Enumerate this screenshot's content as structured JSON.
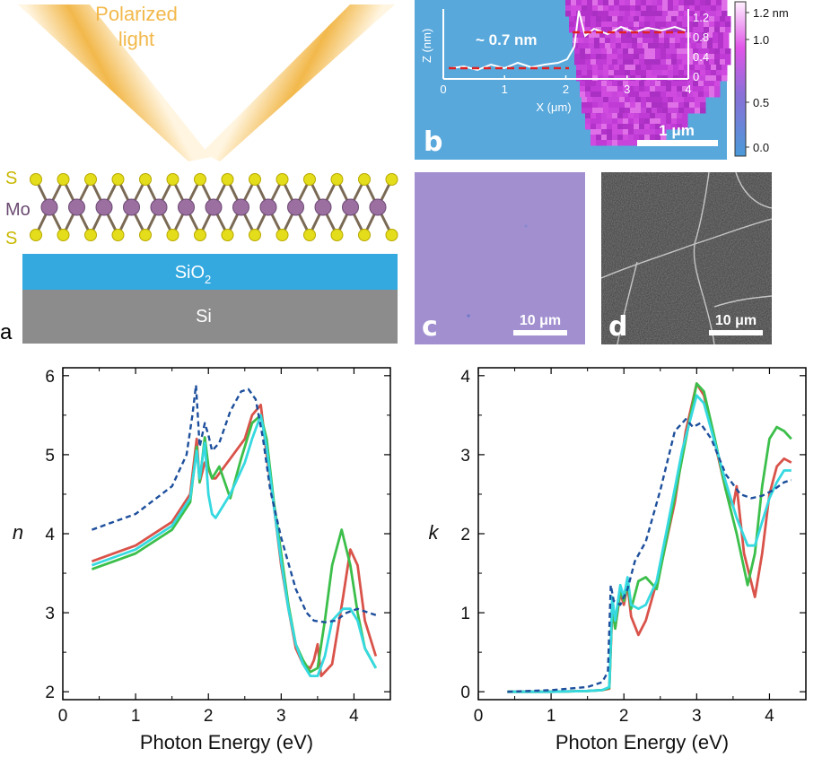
{
  "panel_a": {
    "light_label_1": "Polarized",
    "light_label_2": "light",
    "atom_S_top": "S",
    "atom_Mo": "Mo",
    "atom_S_bottom": "S",
    "layer_sio2": "SiO",
    "layer_sio2_sub": "2",
    "layer_si": "Si",
    "letter": "a",
    "colors": {
      "light": "#f2b84b",
      "sulfur": "#e3dd1c",
      "molybdenum": "#9b6fa0",
      "sio2": "#33a9e0",
      "si": "#8c8c8c"
    }
  },
  "panel_b": {
    "letter": "b",
    "step_label": "~ 0.7 nm",
    "scale_bar": "1 μm",
    "inset_ylabel": "Z (nm)",
    "inset_xlabel": "X (μm)",
    "inset_xticks": [
      "0",
      "1",
      "2",
      "3",
      "4"
    ],
    "inset_yticks": [
      "0",
      "0.4",
      "0.8",
      "1.2"
    ],
    "colorbar_ticks": [
      "1.2 nm",
      "1.0",
      "0.5",
      "0.0"
    ],
    "colors": {
      "substrate": "#58a8dc",
      "flake": "#c03ad6"
    }
  },
  "panel_c": {
    "letter": "c",
    "scale_bar": "10 μm",
    "color": "#a18fd0"
  },
  "panel_d": {
    "letter": "d",
    "scale_bar": "10 μm",
    "color": "#4a4a4a"
  },
  "chart_data": [
    {
      "type": "line",
      "xlabel": "Photon Energy (eV)",
      "ylabel": "n",
      "xlim": [
        0,
        4.5
      ],
      "ylim": [
        1.9,
        6.1
      ],
      "xticks": [
        "0",
        "1",
        "2",
        "3",
        "4"
      ],
      "yticks": [
        "2",
        "3",
        "4",
        "5",
        "6"
      ],
      "series": [
        {
          "color": "#d9534a",
          "style": "solid",
          "x": [
            0.4,
            1.0,
            1.5,
            1.75,
            1.84,
            1.88,
            1.95,
            2.0,
            2.05,
            2.1,
            2.3,
            2.5,
            2.6,
            2.72,
            2.8,
            2.9,
            3.0,
            3.1,
            3.2,
            3.3,
            3.4,
            3.45,
            3.5,
            3.55,
            3.7,
            3.85,
            3.95,
            4.05,
            4.15,
            4.3
          ],
          "y": [
            3.65,
            3.85,
            4.15,
            4.5,
            5.2,
            4.65,
            4.9,
            4.82,
            4.7,
            4.7,
            4.95,
            5.2,
            5.5,
            5.63,
            5.0,
            4.35,
            3.6,
            3.05,
            2.55,
            2.35,
            2.3,
            2.4,
            2.6,
            2.2,
            2.35,
            3.2,
            3.8,
            3.6,
            2.9,
            2.45
          ]
        },
        {
          "color": "#3cbf4a",
          "style": "solid",
          "x": [
            0.4,
            1.0,
            1.5,
            1.75,
            1.84,
            1.88,
            1.95,
            2.0,
            2.05,
            2.15,
            2.3,
            2.45,
            2.6,
            2.72,
            2.8,
            2.9,
            3.0,
            3.1,
            3.2,
            3.3,
            3.4,
            3.5,
            3.6,
            3.7,
            3.83,
            3.95,
            4.05,
            4.15,
            4.3
          ],
          "y": [
            3.55,
            3.75,
            4.05,
            4.4,
            5.1,
            4.65,
            5.22,
            4.85,
            4.7,
            4.85,
            4.45,
            4.95,
            5.4,
            5.5,
            5.2,
            4.4,
            3.75,
            3.1,
            2.6,
            2.4,
            2.25,
            2.3,
            2.9,
            3.6,
            4.05,
            3.6,
            3.0,
            2.55,
            2.3
          ]
        },
        {
          "color": "#36d9e0",
          "style": "solid",
          "x": [
            0.4,
            1.0,
            1.5,
            1.75,
            1.84,
            1.88,
            1.95,
            2.0,
            2.05,
            2.1,
            2.3,
            2.5,
            2.6,
            2.72,
            2.8,
            2.9,
            3.0,
            3.1,
            3.2,
            3.3,
            3.4,
            3.5,
            3.6,
            3.7,
            3.85,
            3.95,
            4.05,
            4.15,
            4.3
          ],
          "y": [
            3.6,
            3.8,
            4.1,
            4.45,
            5.05,
            4.7,
            5.15,
            4.5,
            4.25,
            4.2,
            4.5,
            4.9,
            5.2,
            5.5,
            5.1,
            4.35,
            3.65,
            3.05,
            2.6,
            2.35,
            2.2,
            2.2,
            2.45,
            2.9,
            3.05,
            3.05,
            2.9,
            2.55,
            2.3
          ]
        },
        {
          "color": "#1d4f9c",
          "style": "dashed",
          "x": [
            0.4,
            1.0,
            1.5,
            1.7,
            1.78,
            1.83,
            1.88,
            1.95,
            2.0,
            2.05,
            2.15,
            2.3,
            2.45,
            2.55,
            2.65,
            2.75,
            2.85,
            3.0,
            3.2,
            3.35,
            3.45,
            3.6,
            3.75,
            3.9,
            4.05,
            4.2,
            4.3
          ],
          "y": [
            4.05,
            4.25,
            4.6,
            5.0,
            5.5,
            5.88,
            5.1,
            5.4,
            5.25,
            5.05,
            5.15,
            5.55,
            5.8,
            5.83,
            5.7,
            5.2,
            4.55,
            3.95,
            3.3,
            3.0,
            2.9,
            2.88,
            2.9,
            3.0,
            3.05,
            3.0,
            2.97
          ]
        }
      ]
    },
    {
      "type": "line",
      "xlabel": "Photon Energy (eV)",
      "ylabel": "k",
      "xlim": [
        0,
        4.5
      ],
      "ylim": [
        -0.1,
        4.1
      ],
      "xticks": [
        "0",
        "1",
        "2",
        "3",
        "4"
      ],
      "yticks": [
        "0",
        "1",
        "2",
        "3",
        "4"
      ],
      "series": [
        {
          "color": "#d9534a",
          "style": "solid",
          "x": [
            0.4,
            1.0,
            1.5,
            1.7,
            1.8,
            1.84,
            1.88,
            1.95,
            2.0,
            2.05,
            2.1,
            2.2,
            2.3,
            2.5,
            2.7,
            2.85,
            3.0,
            3.1,
            3.25,
            3.4,
            3.5,
            3.55,
            3.65,
            3.8,
            3.9,
            4.0,
            4.1,
            4.2,
            4.3
          ],
          "y": [
            0.0,
            0.0,
            0.01,
            0.02,
            0.04,
            1.05,
            0.8,
            1.25,
            1.1,
            1.35,
            0.95,
            0.72,
            0.9,
            1.55,
            2.4,
            3.3,
            3.9,
            3.75,
            3.15,
            2.55,
            2.35,
            2.6,
            1.75,
            1.2,
            1.75,
            2.5,
            2.85,
            2.95,
            2.9
          ]
        },
        {
          "color": "#3cbf4a",
          "style": "solid",
          "x": [
            0.4,
            1.0,
            1.5,
            1.7,
            1.8,
            1.84,
            1.88,
            1.95,
            2.0,
            2.05,
            2.1,
            2.2,
            2.3,
            2.45,
            2.6,
            2.8,
            3.0,
            3.1,
            3.25,
            3.4,
            3.55,
            3.7,
            3.8,
            3.9,
            4.0,
            4.1,
            4.2,
            4.3
          ],
          "y": [
            0.0,
            0.0,
            0.01,
            0.02,
            0.05,
            1.1,
            0.8,
            1.3,
            1.15,
            1.4,
            1.05,
            1.4,
            1.45,
            1.3,
            2.0,
            2.95,
            3.9,
            3.8,
            3.2,
            2.55,
            2.0,
            1.35,
            1.75,
            2.6,
            3.2,
            3.35,
            3.3,
            3.2
          ]
        },
        {
          "color": "#36d9e0",
          "style": "solid",
          "x": [
            0.4,
            1.0,
            1.5,
            1.7,
            1.8,
            1.84,
            1.88,
            1.95,
            2.0,
            2.05,
            2.1,
            2.2,
            2.3,
            2.45,
            2.6,
            2.8,
            3.0,
            3.1,
            3.25,
            3.4,
            3.55,
            3.7,
            3.8,
            3.9,
            4.0,
            4.1,
            4.2,
            4.3
          ],
          "y": [
            0.0,
            0.0,
            0.01,
            0.02,
            0.06,
            1.2,
            0.9,
            1.35,
            1.2,
            1.45,
            1.1,
            1.05,
            1.1,
            1.4,
            2.1,
            3.05,
            3.75,
            3.65,
            3.15,
            2.65,
            2.2,
            1.85,
            1.85,
            2.15,
            2.45,
            2.65,
            2.8,
            2.8
          ]
        },
        {
          "color": "#1d4f9c",
          "style": "dashed",
          "x": [
            0.4,
            1.0,
            1.5,
            1.7,
            1.78,
            1.82,
            1.86,
            1.95,
            2.0,
            2.05,
            2.15,
            2.3,
            2.5,
            2.7,
            2.85,
            2.95,
            3.05,
            3.2,
            3.4,
            3.6,
            3.75,
            3.9,
            4.05,
            4.2,
            4.3
          ],
          "y": [
            0.0,
            0.02,
            0.06,
            0.12,
            0.25,
            1.35,
            1.15,
            1.1,
            1.2,
            1.3,
            1.65,
            1.9,
            2.55,
            3.3,
            3.45,
            3.35,
            3.4,
            3.2,
            2.75,
            2.5,
            2.45,
            2.48,
            2.55,
            2.65,
            2.68
          ]
        }
      ]
    }
  ]
}
